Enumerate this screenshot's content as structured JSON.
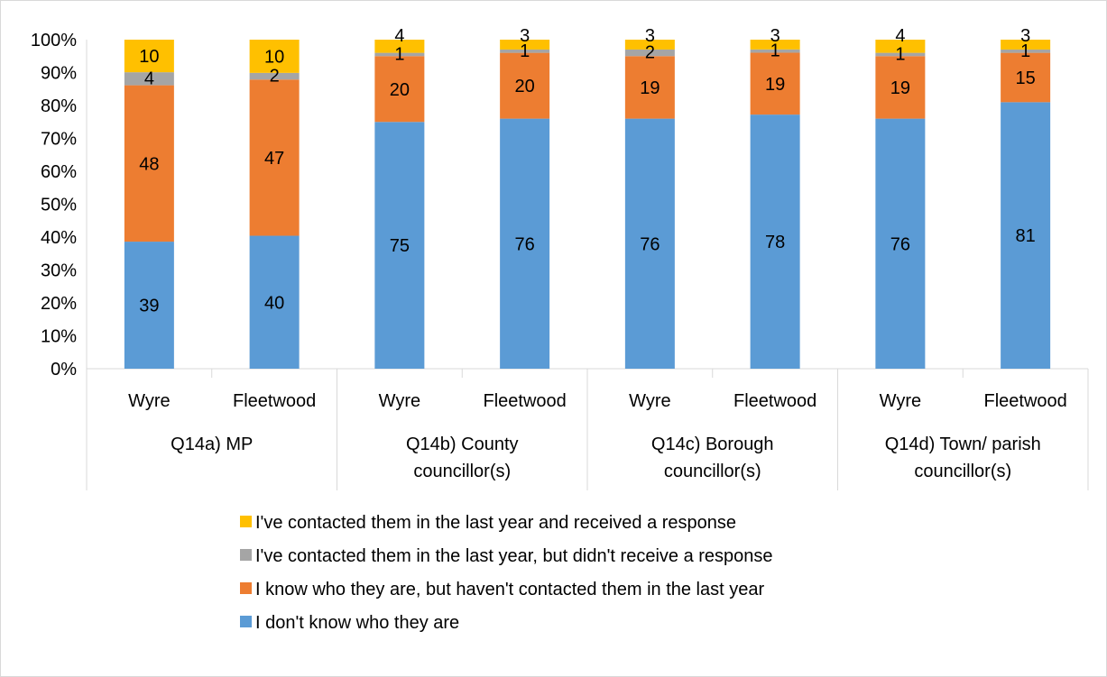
{
  "chart_data": {
    "type": "bar",
    "stacked": true,
    "percent_stacked": true,
    "groups": [
      {
        "label_lines": [
          "Q14a) MP"
        ],
        "categories": [
          "Wyre",
          "Fleetwood"
        ]
      },
      {
        "label_lines": [
          "Q14b) County",
          "councillor(s)"
        ],
        "categories": [
          "Wyre",
          "Fleetwood"
        ]
      },
      {
        "label_lines": [
          "Q14c) Borough",
          "councillor(s)"
        ],
        "categories": [
          "Wyre",
          "Fleetwood"
        ]
      },
      {
        "label_lines": [
          "Q14d)  Town/ parish",
          "councillor(s)"
        ],
        "categories": [
          "Wyre",
          "Fleetwood"
        ]
      }
    ],
    "series": [
      {
        "name": "I don't know who they are",
        "color": "#5b9bd5",
        "values": [
          39,
          40,
          75,
          76,
          76,
          78,
          76,
          81
        ]
      },
      {
        "name": "I know who they are, but haven't contacted them in the last year",
        "color": "#ed7d31",
        "values": [
          48,
          47,
          20,
          20,
          19,
          19,
          19,
          15
        ]
      },
      {
        "name": "I've contacted them in the last year, but didn't receive a response",
        "color": "#a5a5a5",
        "values": [
          4,
          2,
          1,
          1,
          2,
          1,
          1,
          1
        ]
      },
      {
        "name": "I've contacted them in the last year and received a response",
        "color": "#ffc000",
        "values": [
          10,
          10,
          4,
          3,
          3,
          3,
          4,
          3
        ]
      }
    ],
    "y_ticks": [
      "0%",
      "10%",
      "20%",
      "30%",
      "40%",
      "50%",
      "60%",
      "70%",
      "80%",
      "90%",
      "100%"
    ],
    "ylim": [
      0,
      100
    ],
    "legend_position": "bottom",
    "legend_order": [
      3,
      2,
      1,
      0
    ],
    "grid": false
  }
}
